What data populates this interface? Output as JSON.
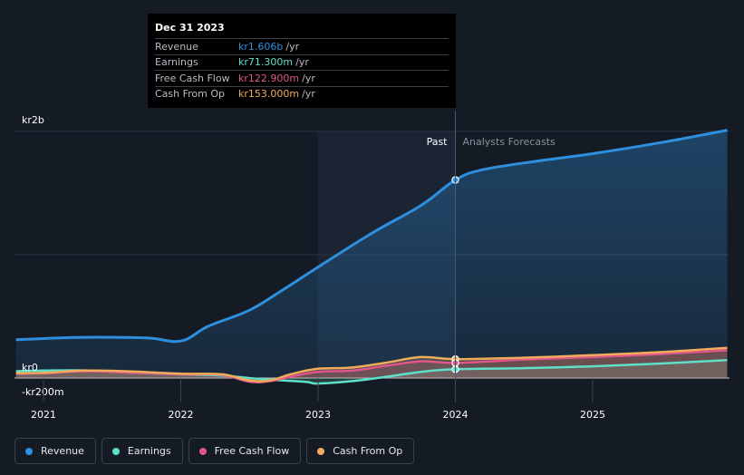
{
  "tooltip": {
    "date": "Dec 31 2023",
    "rows": [
      {
        "label": "Revenue",
        "value": "kr1.606b",
        "unit": "/yr",
        "color": "#2f8fdf"
      },
      {
        "label": "Earnings",
        "value": "kr71.300m",
        "unit": "/yr",
        "color": "#5ee0c8"
      },
      {
        "label": "Free Cash Flow",
        "value": "kr122.900m",
        "unit": "/yr",
        "color": "#e0568a"
      },
      {
        "label": "Cash From Op",
        "value": "kr153.000m",
        "unit": "/yr",
        "color": "#f0ac5a"
      }
    ]
  },
  "regions": {
    "past": "Past",
    "forecast": "Analysts Forecasts"
  },
  "legend": [
    {
      "label": "Revenue",
      "color": "#2f8fdf"
    },
    {
      "label": "Earnings",
      "color": "#5ee0c8"
    },
    {
      "label": "Free Cash Flow",
      "color": "#e0568a"
    },
    {
      "label": "Cash From Op",
      "color": "#f0ac5a"
    }
  ],
  "chart_data": {
    "type": "line",
    "title": "",
    "xlabel": "",
    "ylabel": "",
    "x_ticks": [
      "2021",
      "2022",
      "2023",
      "2024",
      "2025"
    ],
    "y_ticks": [
      {
        "value": 2000,
        "label": "kr2b"
      },
      {
        "value": 0,
        "label": "kr0"
      },
      {
        "value": -200,
        "label": "-kr200m"
      }
    ],
    "unit": "kr millions per year",
    "xlim": [
      2020.8,
      2025.98
    ],
    "ylim": [
      -200,
      2000
    ],
    "past_end": 2024.0,
    "grid": true,
    "legend_position": "bottom-left",
    "series": [
      {
        "name": "Revenue",
        "color": "#2f8fdf",
        "points": [
          [
            2020.8,
            310
          ],
          [
            2021.0,
            320
          ],
          [
            2021.3,
            330
          ],
          [
            2021.75,
            325
          ],
          [
            2022.0,
            300
          ],
          [
            2022.2,
            420
          ],
          [
            2022.5,
            550
          ],
          [
            2022.75,
            720
          ],
          [
            2023.0,
            900
          ],
          [
            2023.4,
            1180
          ],
          [
            2023.75,
            1400
          ],
          [
            2024.0,
            1606
          ],
          [
            2024.2,
            1690
          ],
          [
            2024.6,
            1760
          ],
          [
            2025.0,
            1820
          ],
          [
            2025.5,
            1910
          ],
          [
            2025.98,
            2010
          ]
        ]
      },
      {
        "name": "Earnings",
        "color": "#5ee0c8",
        "points": [
          [
            2020.8,
            55
          ],
          [
            2021.0,
            60
          ],
          [
            2021.3,
            62
          ],
          [
            2021.6,
            45
          ],
          [
            2022.0,
            30
          ],
          [
            2022.3,
            20
          ],
          [
            2022.6,
            -10
          ],
          [
            2022.9,
            -30
          ],
          [
            2023.0,
            -45
          ],
          [
            2023.25,
            -25
          ],
          [
            2023.5,
            10
          ],
          [
            2023.75,
            50
          ],
          [
            2024.0,
            71
          ],
          [
            2024.5,
            80
          ],
          [
            2025.0,
            95
          ],
          [
            2025.5,
            118
          ],
          [
            2025.98,
            145
          ]
        ]
      },
      {
        "name": "Free Cash Flow",
        "color": "#e0568a",
        "points": [
          [
            2020.8,
            35
          ],
          [
            2021.0,
            38
          ],
          [
            2021.3,
            55
          ],
          [
            2021.6,
            45
          ],
          [
            2022.0,
            30
          ],
          [
            2022.3,
            25
          ],
          [
            2022.5,
            -30
          ],
          [
            2022.65,
            -25
          ],
          [
            2022.8,
            10
          ],
          [
            2023.0,
            50
          ],
          [
            2023.25,
            60
          ],
          [
            2023.5,
            100
          ],
          [
            2023.75,
            135
          ],
          [
            2024.0,
            123
          ],
          [
            2024.5,
            150
          ],
          [
            2025.0,
            170
          ],
          [
            2025.5,
            195
          ],
          [
            2025.98,
            225
          ]
        ]
      },
      {
        "name": "Cash From Op",
        "color": "#f0ac5a",
        "points": [
          [
            2020.8,
            40
          ],
          [
            2021.0,
            42
          ],
          [
            2021.3,
            60
          ],
          [
            2021.6,
            55
          ],
          [
            2022.0,
            35
          ],
          [
            2022.3,
            30
          ],
          [
            2022.5,
            -20
          ],
          [
            2022.65,
            -20
          ],
          [
            2022.8,
            30
          ],
          [
            2023.0,
            75
          ],
          [
            2023.25,
            85
          ],
          [
            2023.5,
            125
          ],
          [
            2023.75,
            170
          ],
          [
            2024.0,
            153
          ],
          [
            2024.5,
            165
          ],
          [
            2025.0,
            185
          ],
          [
            2025.5,
            210
          ],
          [
            2025.98,
            245
          ]
        ]
      }
    ],
    "markers_at": 2024.0
  }
}
